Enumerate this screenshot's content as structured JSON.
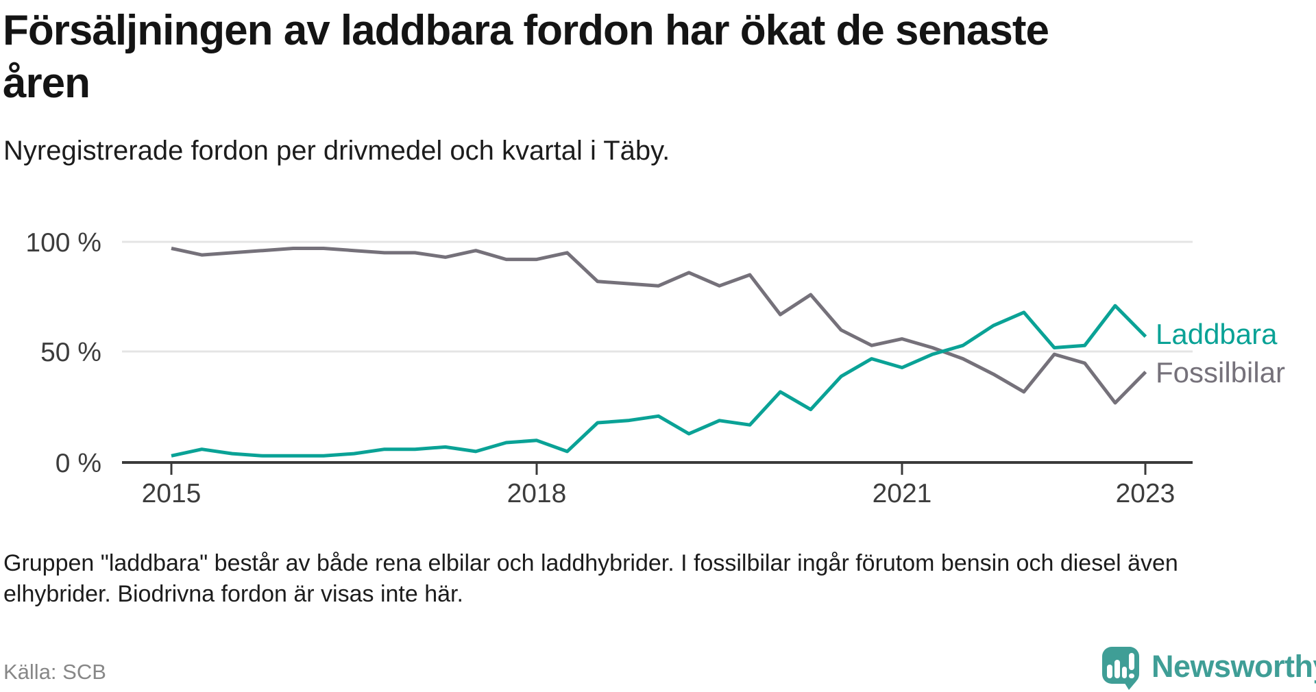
{
  "header": {
    "title_lines": [
      "Försäljningen av laddbara fordon har ökat de senaste",
      "åren"
    ],
    "subtitle": "Nyregistrerade fordon per drivmedel och kvartal i Täby."
  },
  "chart_data": {
    "type": "line",
    "title": "Försäljningen av laddbara fordon har ökat de senaste åren",
    "subtitle": "Nyregistrerade fordon per drivmedel och kvartal i Täby.",
    "unit": "percent of newly registered vehicles",
    "x": [
      "2015-Q1",
      "2015-Q2",
      "2015-Q3",
      "2015-Q4",
      "2016-Q1",
      "2016-Q2",
      "2016-Q3",
      "2016-Q4",
      "2017-Q1",
      "2017-Q2",
      "2017-Q3",
      "2017-Q4",
      "2018-Q1",
      "2018-Q2",
      "2018-Q3",
      "2018-Q4",
      "2019-Q1",
      "2019-Q2",
      "2019-Q3",
      "2019-Q4",
      "2020-Q1",
      "2020-Q2",
      "2020-Q3",
      "2020-Q4",
      "2021-Q1",
      "2021-Q2",
      "2021-Q3",
      "2021-Q4",
      "2022-Q1",
      "2022-Q2",
      "2022-Q3",
      "2022-Q4",
      "2023-Q1"
    ],
    "series": [
      {
        "name": "Laddbara",
        "color": "#0aa296",
        "values": [
          3,
          6,
          4,
          3,
          3,
          3,
          4,
          6,
          6,
          7,
          5,
          9,
          10,
          5,
          18,
          19,
          21,
          13,
          19,
          17,
          32,
          24,
          39,
          47,
          43,
          49,
          53,
          62,
          68,
          52,
          53,
          71,
          57
        ]
      },
      {
        "name": "Fossilbilar",
        "color": "#75717a",
        "values": [
          97,
          94,
          95,
          96,
          97,
          97,
          96,
          95,
          95,
          93,
          96,
          92,
          92,
          95,
          82,
          81,
          80,
          86,
          80,
          85,
          67,
          76,
          60,
          53,
          56,
          52,
          47,
          40,
          32,
          49,
          45,
          27,
          41
        ]
      }
    ],
    "x_axis": {
      "ticks": [
        "2015",
        "2018",
        "2021",
        "2023"
      ]
    },
    "y_axis": {
      "ticks": [
        "100 %",
        "50 %",
        "0 %"
      ],
      "range": [
        0,
        100
      ],
      "grid": true
    },
    "legend_position": "right of line ends"
  },
  "footnote_lines": [
    "Gruppen \"laddbara\" består av både rena elbilar och laddhybrider. I fossilbilar ingår förutom bensin och diesel även",
    "elhybrider. Biodrivna fordon är visas inte här."
  ],
  "source": "Källa: SCB",
  "branding": {
    "logo_text": "Newsworthy",
    "logo_color": "#3f9e96"
  }
}
